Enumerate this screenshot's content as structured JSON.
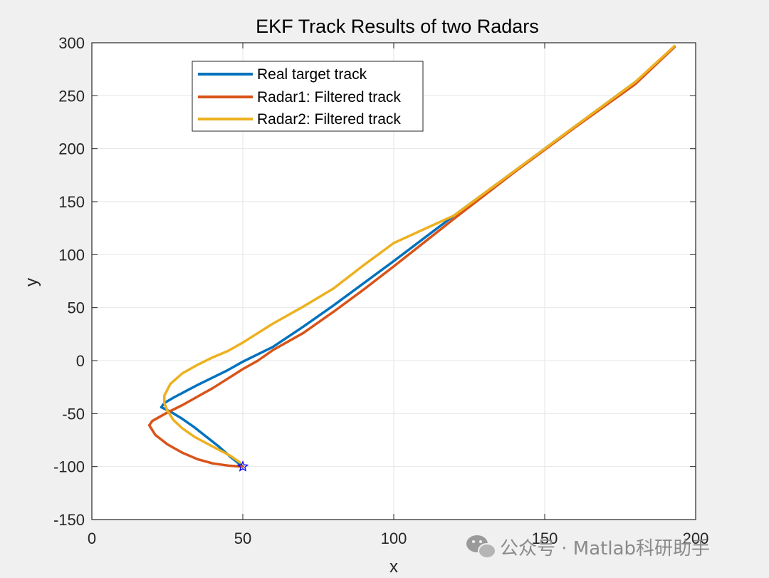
{
  "chart_data": {
    "type": "line",
    "title": "EKF Track Results of two Radars",
    "xlabel": "x",
    "ylabel": "y",
    "xlim": [
      0,
      200
    ],
    "ylim": [
      -150,
      300
    ],
    "xticks": [
      "0",
      "50",
      "100",
      "150",
      "200"
    ],
    "yticks": [
      "300",
      "250",
      "200",
      "150",
      "100",
      "50",
      "0",
      "-50",
      "-100",
      "-150"
    ],
    "grid": true,
    "legend_position": "top-left",
    "series": [
      {
        "name": "Real target track",
        "color": "#0072BD",
        "x": [
          50,
          46,
          42,
          38,
          34,
          30,
          26,
          23,
          24,
          27,
          31,
          35,
          40,
          45,
          50,
          55,
          60,
          70,
          80,
          90,
          100,
          120,
          140,
          160,
          180,
          193
        ],
        "y": [
          -100,
          -91,
          -81,
          -72,
          -63,
          -55,
          -48,
          -44,
          -40,
          -35,
          -29,
          -23,
          -16,
          -9,
          -1,
          6,
          13,
          32,
          52,
          73,
          94,
          137,
          179,
          221,
          263,
          296
        ]
      },
      {
        "name": "Radar1: Filtered track",
        "color": "#D95319",
        "x": [
          50,
          45,
          40,
          35,
          30,
          25,
          21,
          19,
          20,
          25,
          30,
          35,
          40,
          45,
          50,
          55,
          60,
          70,
          80,
          90,
          100,
          120,
          140,
          160,
          180,
          193
        ],
        "y": [
          -100,
          -99,
          -97,
          -93,
          -87,
          -79,
          -70,
          -61,
          -57,
          -49,
          -42,
          -34,
          -26,
          -17,
          -8,
          0,
          10,
          26,
          46,
          67,
          89,
          134,
          178,
          220,
          261,
          296
        ]
      },
      {
        "name": "Radar2: Filtered track",
        "color": "#EDB120",
        "x": [
          49,
          46,
          42,
          38,
          34,
          30,
          27,
          25,
          24,
          24,
          26,
          30,
          35,
          40,
          45,
          50,
          55,
          60,
          65,
          70,
          80,
          90,
          100,
          120,
          140,
          160,
          180,
          193
        ],
        "y": [
          -96,
          -90,
          -84,
          -78,
          -72,
          -64,
          -56,
          -47,
          -40,
          -33,
          -22,
          -12,
          -4,
          3,
          9,
          17,
          26,
          35,
          43,
          51,
          68,
          90,
          111,
          137,
          179,
          221,
          263,
          297
        ]
      }
    ],
    "markers": [
      {
        "shape": "star",
        "x": 50,
        "y": -100,
        "color": "#0000FF"
      }
    ]
  },
  "watermark": {
    "icon": "wechat-icon",
    "text": "公众号 · Matlab科研助手"
  }
}
